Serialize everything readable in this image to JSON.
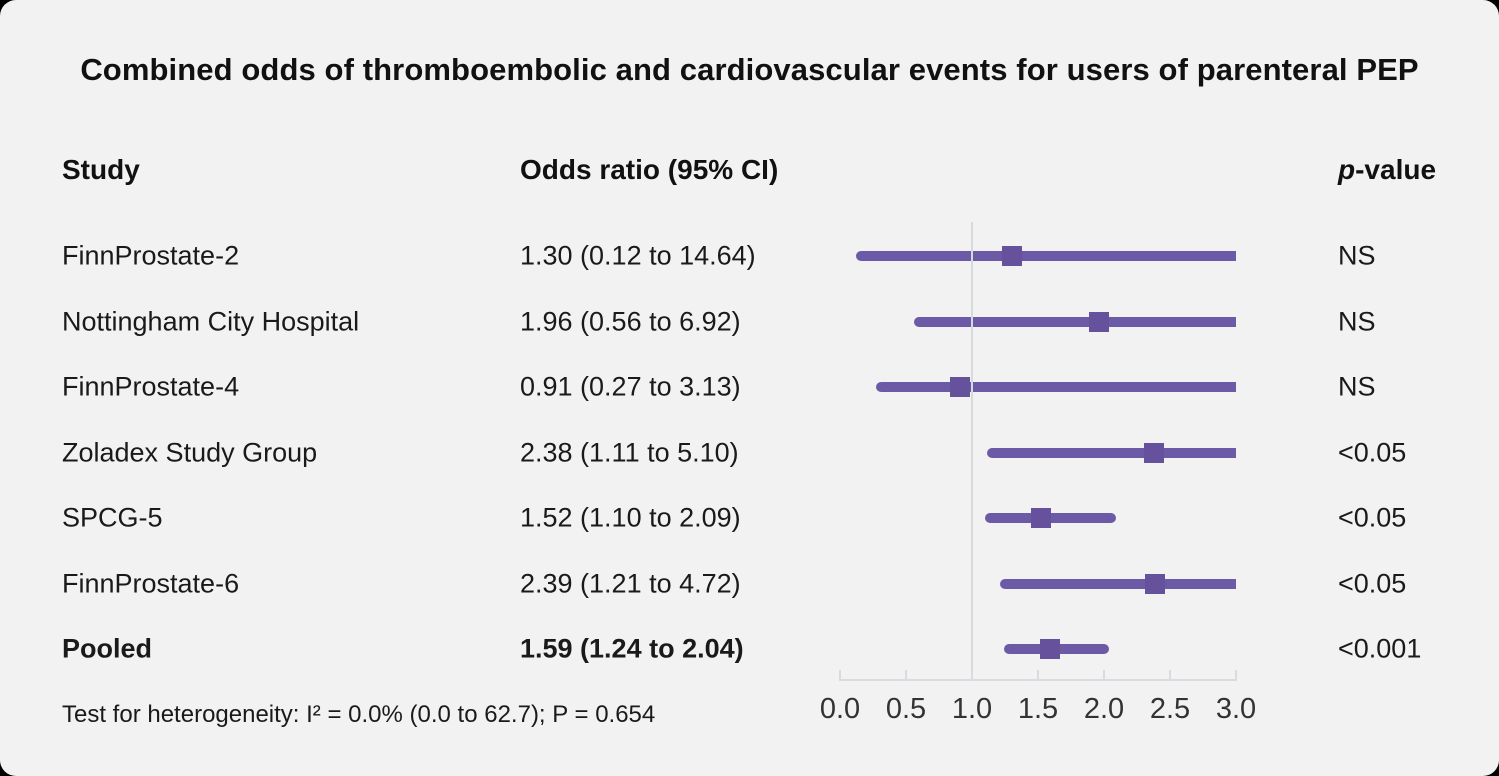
{
  "title": "Combined odds of thromboembolic and cardiovascular events for users of parenteral PEP",
  "columns": {
    "study": "Study",
    "odds_ratio": "Odds ratio (95% CI)",
    "p_italic": "p",
    "p_rest": "-value"
  },
  "footer": "Test for heterogeneity: I² = 0.0% (0.0 to 62.7); P = 0.654",
  "chart_data": {
    "type": "forest",
    "title": "Combined odds of thromboembolic and cardiovascular events for users of parenteral PEP",
    "studies": [
      {
        "study": "FinnProstate-2",
        "or": 1.3,
        "ci_low": 0.12,
        "ci_high": 14.64,
        "or_label": "1.30 (0.12 to 14.64)",
        "p_value": "NS",
        "bold": false
      },
      {
        "study": "Nottingham City Hospital",
        "or": 1.96,
        "ci_low": 0.56,
        "ci_high": 6.92,
        "or_label": "1.96 (0.56 to 6.92)",
        "p_value": "NS",
        "bold": false
      },
      {
        "study": "FinnProstate-4",
        "or": 0.91,
        "ci_low": 0.27,
        "ci_high": 3.13,
        "or_label": "0.91 (0.27 to 3.13)",
        "p_value": "NS",
        "bold": false
      },
      {
        "study": "Zoladex Study Group",
        "or": 2.38,
        "ci_low": 1.11,
        "ci_high": 5.1,
        "or_label": "2.38 (1.11 to 5.10)",
        "p_value": "<0.05",
        "bold": false
      },
      {
        "study": "SPCG-5",
        "or": 1.52,
        "ci_low": 1.1,
        "ci_high": 2.09,
        "or_label": "1.52 (1.10 to 2.09)",
        "p_value": "<0.05",
        "bold": false
      },
      {
        "study": "FinnProstate-6",
        "or": 2.39,
        "ci_low": 1.21,
        "ci_high": 4.72,
        "or_label": "2.39 (1.21 to 4.72)",
        "p_value": "<0.05",
        "bold": false
      },
      {
        "study": "Pooled",
        "or": 1.59,
        "ci_low": 1.24,
        "ci_high": 2.04,
        "or_label": "1.59 (1.24 to 2.04)",
        "p_value": "<0.001",
        "bold": true
      }
    ],
    "axis": {
      "min": 0.0,
      "max": 3.0,
      "ticks": [
        0.0,
        0.5,
        1.0,
        1.5,
        2.0,
        2.5,
        3.0
      ],
      "tick_labels": [
        "0.0",
        "0.5",
        "1.0",
        "1.5",
        "2.0",
        "2.5",
        "3.0"
      ],
      "reference_line": 1.0,
      "grid": false
    },
    "legend": null,
    "footnote": "Test for heterogeneity: I² = 0.0% (0.0 to 62.7); P = 0.654",
    "colors": {
      "ci_line": "#6c5aa7",
      "marker": "#66519c",
      "reference_line": "#d5dade",
      "axis_line": "#d8dbe0",
      "background": "#f2f2f2",
      "text": "#1a1a1a"
    }
  }
}
